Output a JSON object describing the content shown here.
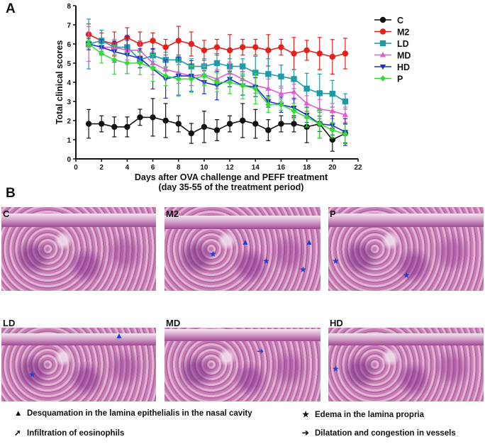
{
  "panel_a_label": "A",
  "panel_b_label": "B",
  "chart_data": {
    "type": "line",
    "xlabel": "Days after OVA challenge and PEFF treatment",
    "xlabel2": "(day 35-55 of the treatment period)",
    "ylabel": "Total clinical scores",
    "xlim": [
      0,
      22
    ],
    "ylim": [
      0,
      8
    ],
    "xticks": [
      0,
      2,
      4,
      6,
      8,
      10,
      12,
      14,
      16,
      18,
      20,
      22
    ],
    "yticks": [
      0,
      1,
      2,
      3,
      4,
      5,
      6,
      7,
      8
    ],
    "x": [
      1,
      2,
      3,
      4,
      5,
      6,
      7,
      8,
      9,
      10,
      11,
      12,
      13,
      14,
      15,
      16,
      17,
      18,
      19,
      20,
      21
    ],
    "legend_position": "right",
    "series": [
      {
        "name": "C",
        "color": "#111111",
        "marker": "circle",
        "values": [
          1.83,
          1.83,
          1.67,
          1.67,
          2.17,
          2.17,
          2.0,
          1.83,
          1.33,
          1.67,
          1.5,
          1.83,
          2.0,
          1.83,
          1.5,
          1.83,
          1.83,
          1.67,
          1.83,
          1.0,
          1.33
        ],
        "error": [
          0.75,
          0.42,
          0.52,
          0.52,
          0.42,
          0.98,
          0.89,
          0.42,
          0.52,
          0.82,
          0.55,
          0.42,
          0.89,
          0.75,
          0.55,
          0.42,
          0.42,
          0.82,
          0.75,
          0.6,
          0.5
        ]
      },
      {
        "name": "M2",
        "color": "#e3201b",
        "marker": "circle",
        "values": [
          6.5,
          6.17,
          6.0,
          6.33,
          6.0,
          6.17,
          5.83,
          6.17,
          6.0,
          5.67,
          5.83,
          5.67,
          5.83,
          5.83,
          5.67,
          5.83,
          5.5,
          5.67,
          5.5,
          5.33,
          5.5
        ],
        "error": [
          0.55,
          0.41,
          0.63,
          0.52,
          0.63,
          0.41,
          0.41,
          0.75,
          0.63,
          0.52,
          0.41,
          0.82,
          0.41,
          0.41,
          0.82,
          0.41,
          0.84,
          0.52,
          0.84,
          0.9,
          0.8
        ]
      },
      {
        "name": "LD",
        "color": "#1f9aa6",
        "marker": "square",
        "values": [
          6.0,
          6.17,
          5.83,
          5.83,
          5.17,
          5.4,
          5.17,
          5.17,
          4.83,
          4.83,
          5.0,
          4.83,
          4.83,
          4.5,
          4.43,
          4.3,
          4.17,
          3.67,
          3.43,
          3.4,
          3.0
        ],
        "error": [
          1.3,
          0.55,
          0.4,
          0.4,
          0.4,
          0.3,
          0.4,
          0.25,
          0.4,
          0.4,
          0.5,
          0.4,
          0.4,
          0.85,
          0.8,
          0.6,
          0.5,
          0.8,
          1.0,
          0.7,
          0.4
        ]
      },
      {
        "name": "MD",
        "color": "#e05bd0",
        "marker": "triangle-up",
        "values": [
          6.0,
          5.83,
          5.83,
          5.67,
          5.67,
          5.0,
          4.67,
          4.5,
          4.33,
          4.4,
          4.17,
          4.5,
          4.17,
          3.83,
          3.67,
          3.4,
          3.5,
          2.9,
          2.6,
          2.5,
          2.3
        ],
        "error": [
          0.9,
          0.4,
          0.4,
          0.5,
          0.5,
          0.6,
          0.5,
          0.55,
          0.5,
          0.5,
          0.5,
          0.55,
          0.4,
          0.4,
          0.5,
          0.4,
          0.4,
          0.4,
          0.5,
          0.4,
          0.4
        ]
      },
      {
        "name": "HD",
        "color": "#1f2fd0",
        "marker": "triangle-down",
        "values": [
          6.0,
          5.83,
          5.6,
          5.43,
          5.25,
          4.7,
          4.17,
          4.33,
          4.33,
          4.0,
          3.83,
          4.17,
          3.83,
          3.75,
          3.0,
          2.83,
          2.67,
          2.3,
          1.83,
          1.75,
          1.4
        ],
        "error": [
          0.3,
          0.4,
          0.55,
          0.98,
          0.5,
          1.05,
          1.0,
          1.0,
          0.8,
          0.6,
          0.75,
          0.4,
          0.5,
          0.5,
          0.3,
          0.4,
          0.5,
          0.4,
          0.4,
          0.5,
          0.7
        ]
      },
      {
        "name": "P",
        "color": "#33dd33",
        "marker": "diamond",
        "values": [
          6.0,
          5.5,
          5.17,
          5.0,
          5.0,
          4.75,
          4.33,
          4.17,
          4.17,
          4.33,
          4.0,
          4.0,
          3.83,
          3.67,
          2.83,
          2.83,
          2.5,
          2.17,
          1.83,
          1.5,
          1.3
        ],
        "error": [
          0.2,
          0.5,
          0.75,
          0.55,
          0.6,
          0.7,
          0.5,
          0.9,
          0.7,
          0.5,
          0.5,
          0.6,
          0.7,
          0.8,
          0.4,
          0.3,
          0.4,
          0.5,
          0.75,
          0.4,
          0.5
        ]
      }
    ]
  },
  "histology": [
    {
      "label": "C"
    },
    {
      "label": "M2"
    },
    {
      "label": "P"
    },
    {
      "label": "LD"
    },
    {
      "label": "MD"
    },
    {
      "label": "HD"
    }
  ],
  "key": [
    {
      "symbol": "▲",
      "text": "Desquamation in the lamina epithelialis in the nasal cavity"
    },
    {
      "symbol": "★",
      "text": "Edema in the lamina propria"
    },
    {
      "symbol": "➚",
      "text": "Infiltration of eosinophils"
    },
    {
      "symbol": "➔",
      "text": "Dilatation and congestion in vessels"
    }
  ]
}
